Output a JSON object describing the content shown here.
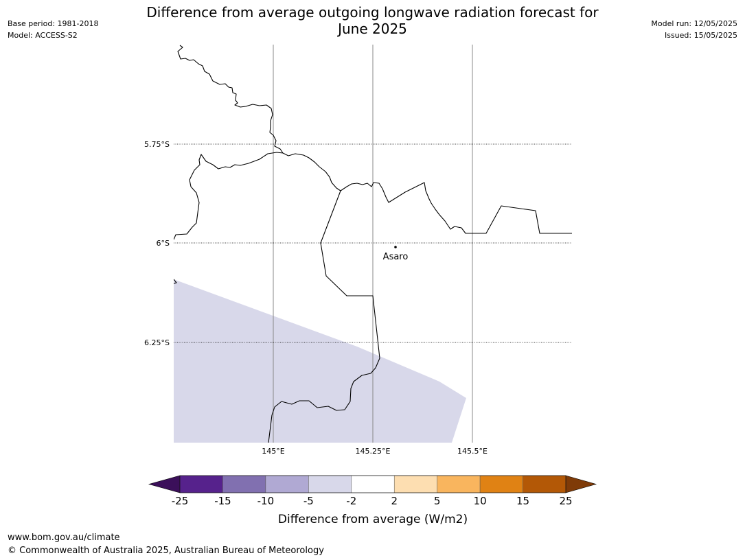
{
  "header": {
    "title_line1": "Difference from average outgoing longwave radiation forecast for",
    "title_line2": "June 2025",
    "base_period": "Base period: 1981-2018",
    "model": "Model: ACCESS-S2",
    "model_run": "Model run: 12/05/2025",
    "issued": "Issued: 15/05/2025"
  },
  "map": {
    "lat_labels": [
      "5.75°S",
      "6°S",
      "6.25°S"
    ],
    "lon_labels": [
      "145°E",
      "145.25°E",
      "145.5°E"
    ],
    "place": "Asaro",
    "anomaly_fill_color": "#d8d8ea"
  },
  "legend": {
    "ticks": [
      "-25",
      "-15",
      "-10",
      "-5",
      "-2",
      "2",
      "5",
      "10",
      "15",
      "25"
    ],
    "colors": [
      "#3b0f5a",
      "#56228c",
      "#8170b0",
      "#b0a9d3",
      "#d8d8ea",
      "#ffffff",
      "#fddeb1",
      "#f9b55e",
      "#e08214",
      "#b35806",
      "#7f3b08"
    ],
    "label": "Difference from average (W/m2)"
  },
  "footer": {
    "url": "www.bom.gov.au/climate",
    "copyright": "© Commonwealth of Australia 2025, Australian Bureau of Meteorology"
  }
}
